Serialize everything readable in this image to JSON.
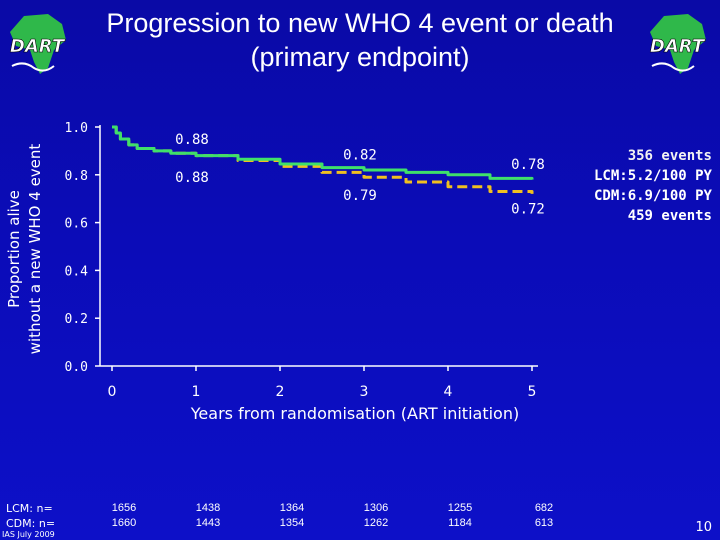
{
  "slide": {
    "title_line1": "Progression to new WHO 4 event or death",
    "title_line2": "(primary endpoint)",
    "logo_text": "DART",
    "footer": "IAS July 2009",
    "page_number": "10"
  },
  "events_box": {
    "line1": "356 events",
    "line2": "LCM:5.2/100 PY",
    "line3": "CDM:6.9/100 PY",
    "line4": "459 events"
  },
  "risk_table": {
    "lcm_label": "LCM: n=",
    "cdm_label": "CDM: n=",
    "lcm": [
      "1656",
      "1438",
      "1364",
      "1306",
      "1255",
      "682"
    ],
    "cdm": [
      "1660",
      "1443",
      "1354",
      "1262",
      "1184",
      "613"
    ]
  },
  "colors": {
    "background": "#0b0cb8",
    "lcm_line": "#3fe06a",
    "cdm_line": "#f0c020",
    "axis": "#ffffff",
    "text": "#ffffff"
  },
  "chart_data": {
    "type": "line",
    "xlabel": "Years from randomisation (ART initiation)",
    "ylabel_line1": "Proportion alive",
    "ylabel_line2": "without a new WHO 4 event",
    "xlim": [
      0,
      5
    ],
    "ylim": [
      0,
      1.0
    ],
    "x_ticks": [
      "0",
      "1",
      "2",
      "3",
      "4",
      "5"
    ],
    "y_ticks": [
      "0.0",
      "0.2",
      "0.4",
      "0.6",
      "0.8",
      "1.0"
    ],
    "grid": false,
    "series": [
      {
        "key": "lcm",
        "style": "solid",
        "color": "#3fe06a",
        "x": [
          0,
          0.05,
          0.1,
          0.2,
          0.3,
          0.5,
          0.7,
          1.0,
          1.5,
          2.0,
          2.5,
          3.0,
          3.5,
          4.0,
          4.5,
          5.0
        ],
        "y": [
          1.0,
          0.975,
          0.95,
          0.925,
          0.91,
          0.9,
          0.89,
          0.88,
          0.865,
          0.845,
          0.83,
          0.82,
          0.81,
          0.8,
          0.785,
          0.78
        ]
      },
      {
        "key": "cdm",
        "style": "dashed",
        "color": "#f0c020",
        "x": [
          0,
          0.05,
          0.1,
          0.2,
          0.3,
          0.5,
          0.7,
          1.0,
          1.5,
          2.0,
          2.5,
          3.0,
          3.5,
          4.0,
          4.5,
          5.0
        ],
        "y": [
          1.0,
          0.975,
          0.95,
          0.925,
          0.91,
          0.9,
          0.89,
          0.88,
          0.86,
          0.835,
          0.81,
          0.79,
          0.77,
          0.75,
          0.73,
          0.72
        ]
      }
    ],
    "annotations": [
      {
        "text": "0.88",
        "x": 1.0,
        "y": 0.95
      },
      {
        "text": "0.88",
        "x": 1.0,
        "y": 0.79
      },
      {
        "text": "0.82",
        "x": 3.0,
        "y": 0.885
      },
      {
        "text": "0.79",
        "x": 3.0,
        "y": 0.715
      },
      {
        "text": "0.78",
        "x": 5.0,
        "y": 0.845
      },
      {
        "text": "0.72",
        "x": 5.0,
        "y": 0.66
      }
    ]
  }
}
